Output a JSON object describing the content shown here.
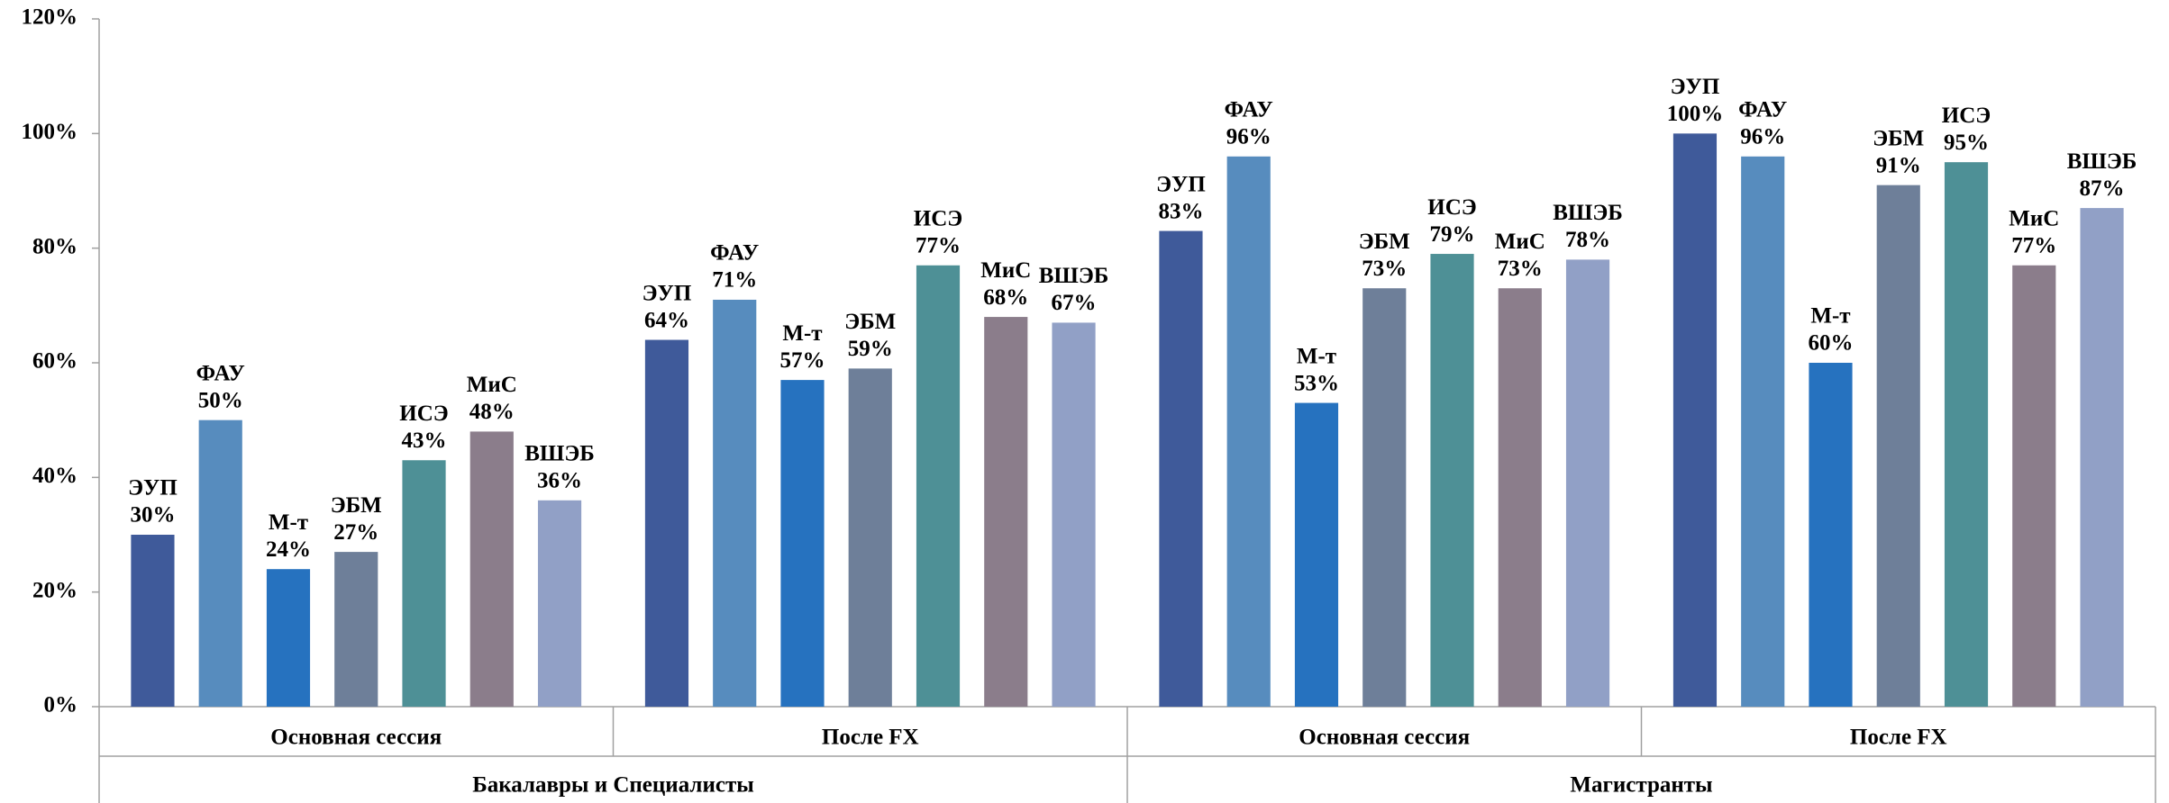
{
  "chart_data": {
    "type": "bar",
    "categories": [
      "Основная сессия",
      "После FX",
      "Основная сессия",
      "После FX"
    ],
    "category_groups": [
      "Бакалавры и Специалисты",
      "Магистранты"
    ],
    "series": [
      {
        "name": "ЭУП",
        "color": "#3f5a9a",
        "values": [
          30,
          64,
          83,
          100
        ],
        "value_labels": [
          "30%",
          "64%",
          "83%",
          "100%"
        ]
      },
      {
        "name": "ФАУ",
        "color": "#578cbe",
        "values": [
          50,
          71,
          96,
          96
        ],
        "value_labels": [
          "50%",
          "71%",
          "96%",
          "96%"
        ]
      },
      {
        "name": "М-т",
        "color": "#2672bf",
        "values": [
          24,
          57,
          53,
          60
        ],
        "value_labels": [
          "24%",
          "57%",
          "53%",
          "60%"
        ]
      },
      {
        "name": "ЭБМ",
        "color": "#6e7f99",
        "values": [
          27,
          59,
          73,
          91
        ],
        "value_labels": [
          "27%",
          "59%",
          "73%",
          "91%"
        ]
      },
      {
        "name": "ИСЭ",
        "color": "#4e9096",
        "values": [
          43,
          77,
          79,
          95
        ],
        "value_labels": [
          "43%",
          "77%",
          "79%",
          "95%"
        ]
      },
      {
        "name": "МиС",
        "color": "#8b7d8b",
        "values": [
          48,
          68,
          73,
          77
        ],
        "value_labels": [
          "48%",
          "68%",
          "73%",
          "77%"
        ]
      },
      {
        "name": "ВШЭБ",
        "color": "#91a0c6",
        "values": [
          36,
          67,
          78,
          87
        ],
        "value_labels": [
          "36%",
          "67%",
          "78%",
          "87%"
        ]
      }
    ],
    "ylim": [
      0,
      120
    ],
    "yticks": [
      {
        "value": 0,
        "label": "0%"
      },
      {
        "value": 20,
        "label": "20%"
      },
      {
        "value": 40,
        "label": "40%"
      },
      {
        "value": 60,
        "label": "60%"
      },
      {
        "value": 80,
        "label": "80%"
      },
      {
        "value": 100,
        "label": "100%"
      },
      {
        "value": 120,
        "label": "120%"
      }
    ],
    "grid": false
  }
}
